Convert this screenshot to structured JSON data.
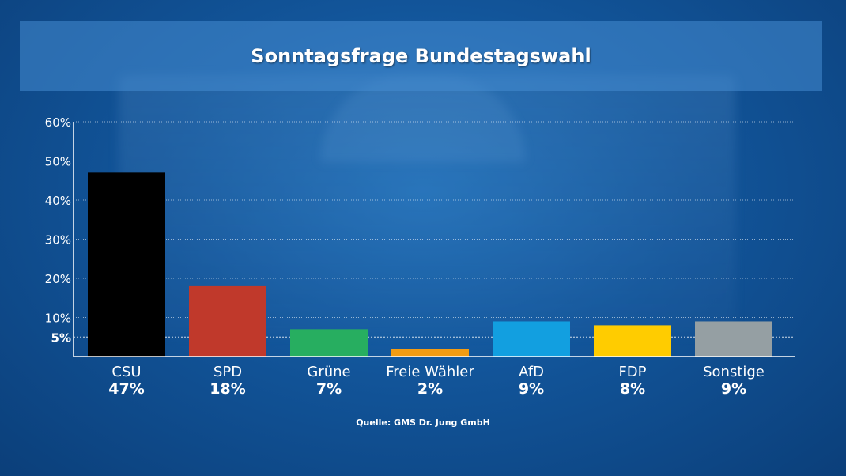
{
  "title": "Sonntagsfrage Bundestagswahl",
  "source": "Quelle: GMS Dr. Jung GmbH",
  "chart_data": {
    "type": "bar",
    "title": "Sonntagsfrage Bundestagswahl",
    "categories": [
      "CSU",
      "SPD",
      "Grüne",
      "Freie Wähler",
      "AfD",
      "FDP",
      "Sonstige"
    ],
    "values": [
      47,
      18,
      7,
      2,
      9,
      8,
      9
    ],
    "value_labels": [
      "47%",
      "18%",
      "7%",
      "2%",
      "9%",
      "8%",
      "9%"
    ],
    "colors": [
      "#000000",
      "#c0392b",
      "#27ae60",
      "#f39c12",
      "#129fe0",
      "#ffcc00",
      "#959fa3"
    ],
    "yticks": [
      10,
      20,
      30,
      40,
      50,
      60
    ],
    "ytick_labels": [
      "10%",
      "20%",
      "30%",
      "40%",
      "50%",
      "60%"
    ],
    "threshold": 5,
    "threshold_label": "5%",
    "ylim": [
      0,
      60
    ],
    "xlabel": "",
    "ylabel": "",
    "grid": true,
    "legend": "none"
  }
}
